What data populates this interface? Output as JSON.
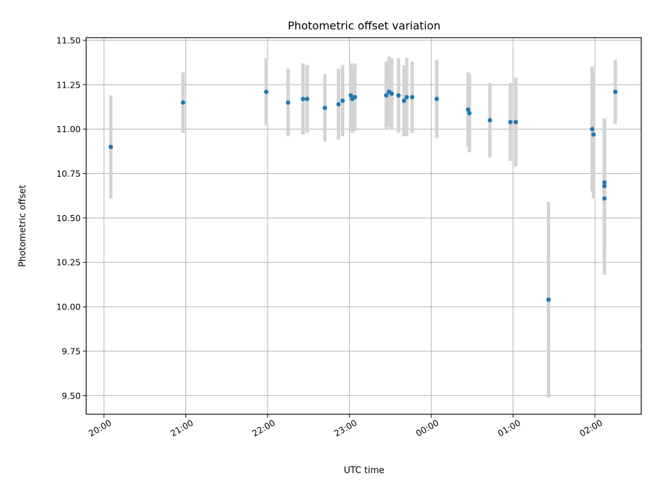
{
  "chart_data": {
    "type": "scatter",
    "title": "Photometric offset variation",
    "xlabel": "UTC time",
    "ylabel": "Photometric offset",
    "grid": true,
    "x_ticks": [
      "20:00",
      "21:00",
      "22:00",
      "23:00",
      "00:00",
      "01:00",
      "02:00"
    ],
    "y_ticks": [
      "9.50",
      "9.75",
      "10.00",
      "10.25",
      "10.50",
      "10.75",
      "11.00",
      "11.25",
      "11.50"
    ],
    "xlim": [
      "19:47",
      "26:34"
    ],
    "ylim": [
      9.395,
      11.515
    ],
    "colors": {
      "points": "#1f77b4",
      "errorbars": "#d3d3d3",
      "grid": "#b0b0b0"
    },
    "series": [
      {
        "points": [
          {
            "x": "20:05",
            "y": 10.9,
            "yerr": 0.29
          },
          {
            "x": "20:58",
            "y": 11.15,
            "yerr": 0.17
          },
          {
            "x": "21:59",
            "y": 11.21,
            "yerr": 0.19
          },
          {
            "x": "22:15",
            "y": 11.15,
            "yerr": 0.19
          },
          {
            "x": "22:26",
            "y": 11.17,
            "yerr": 0.2
          },
          {
            "x": "22:29",
            "y": 11.17,
            "yerr": 0.19
          },
          {
            "x": "22:42",
            "y": 11.12,
            "yerr": 0.19
          },
          {
            "x": "22:52",
            "y": 11.14,
            "yerr": 0.2
          },
          {
            "x": "22:55",
            "y": 11.16,
            "yerr": 0.2
          },
          {
            "x": "23:01",
            "y": 11.19,
            "yerr": 0.18
          },
          {
            "x": "23:02",
            "y": 11.17,
            "yerr": 0.19
          },
          {
            "x": "23:04",
            "y": 11.18,
            "yerr": 0.19
          },
          {
            "x": "23:27",
            "y": 11.19,
            "yerr": 0.19
          },
          {
            "x": "23:29",
            "y": 11.21,
            "yerr": 0.2
          },
          {
            "x": "23:31",
            "y": 11.2,
            "yerr": 0.2
          },
          {
            "x": "23:36",
            "y": 11.19,
            "yerr": 0.21
          },
          {
            "x": "23:40",
            "y": 11.16,
            "yerr": 0.2
          },
          {
            "x": "23:42",
            "y": 11.18,
            "yerr": 0.22
          },
          {
            "x": "23:46",
            "y": 11.18,
            "yerr": 0.2
          },
          {
            "x": "00:04",
            "y": 11.17,
            "yerr": 0.22
          },
          {
            "x": "00:27",
            "y": 11.11,
            "yerr": 0.21
          },
          {
            "x": "00:28",
            "y": 11.09,
            "yerr": 0.22
          },
          {
            "x": "00:43",
            "y": 11.05,
            "yerr": 0.21
          },
          {
            "x": "00:58",
            "y": 11.04,
            "yerr": 0.22
          },
          {
            "x": "01:02",
            "y": 11.04,
            "yerr": 0.25
          },
          {
            "x": "01:26",
            "y": 10.04,
            "yerr": 0.55
          },
          {
            "x": "01:58",
            "y": 11.0,
            "yerr": 0.35
          },
          {
            "x": "01:59",
            "y": 10.97,
            "yerr": 0.36
          },
          {
            "x": "02:07",
            "y": 10.7,
            "yerr": 0.36
          },
          {
            "x": "02:07",
            "y": 10.68,
            "yerr": 0.38
          },
          {
            "x": "02:07",
            "y": 10.61,
            "yerr": 0.43
          },
          {
            "x": "02:15",
            "y": 11.21,
            "yerr": 0.18
          }
        ]
      }
    ]
  }
}
